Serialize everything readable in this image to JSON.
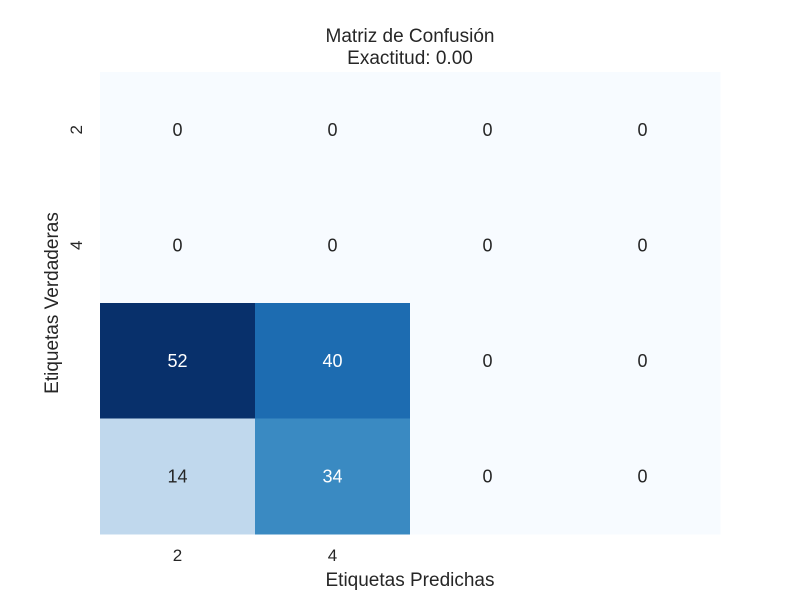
{
  "chart_data": {
    "type": "heatmap",
    "title_line1": "Matriz de Confusión",
    "title_line2": "Exactitud: 0.00",
    "xlabel": "Etiquetas Predichas",
    "ylabel": "Etiquetas Verdaderas",
    "x_tick_labels": [
      "2",
      "4",
      "",
      ""
    ],
    "y_tick_labels": [
      "2",
      "4",
      "",
      ""
    ],
    "values": [
      [
        0,
        0,
        0,
        0
      ],
      [
        0,
        0,
        0,
        0
      ],
      [
        52,
        40,
        0,
        0
      ],
      [
        14,
        34,
        0,
        0
      ]
    ],
    "colormap": "Blues",
    "color_range": [
      0,
      52
    ],
    "colorbar": false
  }
}
